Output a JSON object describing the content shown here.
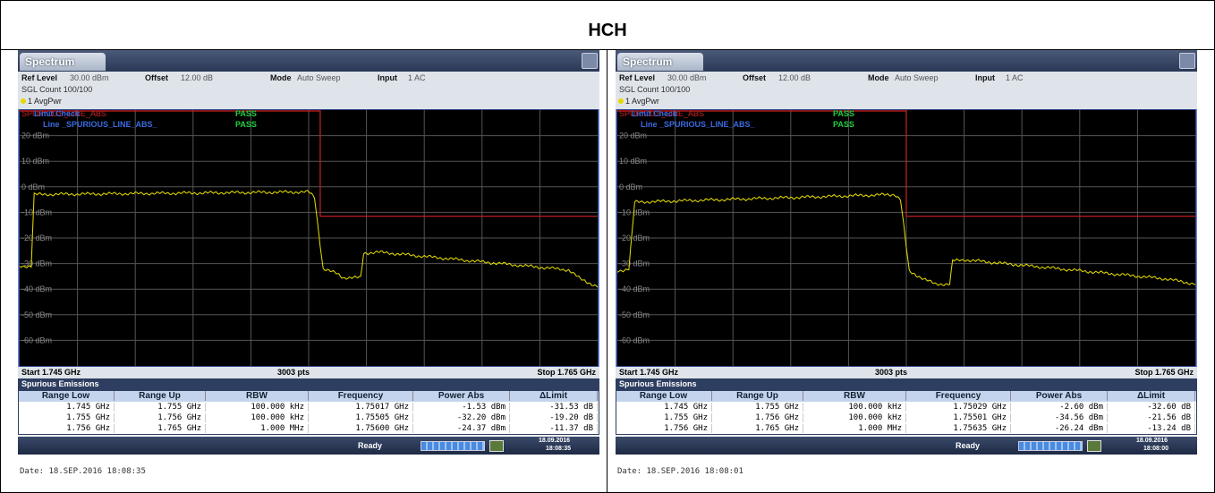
{
  "title": "HCH",
  "panels": [
    {
      "tab": "Spectrum",
      "ref_level_label": "Ref Level",
      "ref_level": "30.00 dBm",
      "offset_label": "Offset",
      "offset": "12.00 dB",
      "mode_label": "Mode",
      "mode": "Auto Sweep",
      "input_label": "Input",
      "input": "1 AC",
      "count": "SGL Count 100/100",
      "trace": "1 AvgPwr",
      "limit_name": "SPURIOUS_LINE_ABS",
      "limit_check": "Limit Check",
      "limit_check_result": "PASS",
      "line_label": "Line _SPURIOUS_LINE_ABS_",
      "line_result": "PASS",
      "y_labels": [
        "20 dBm",
        "10 dBm",
        "0 dBm",
        "-10 dBm",
        "-20 dBm",
        "-30 dBm",
        "-40 dBm",
        "-50 dBm",
        "-60 dBm"
      ],
      "start": "Start 1.745 GHz",
      "points": "3003 pts",
      "stop": "Stop 1.765 GHz",
      "table": {
        "title": "Spurious Emissions",
        "columns": [
          "Range Low",
          "Range Up",
          "RBW",
          "Frequency",
          "Power Abs",
          "ΔLimit"
        ],
        "rows": [
          [
            "1.745 GHz",
            "1.755 GHz",
            "100.000 kHz",
            "1.75017 GHz",
            "-1.53 dBm",
            "-31.53 dB"
          ],
          [
            "1.755 GHz",
            "1.756 GHz",
            "100.000 kHz",
            "1.75505 GHz",
            "-32.20 dBm",
            "-19.20 dB"
          ],
          [
            "1.756 GHz",
            "1.765 GHz",
            "1.000 MHz",
            "1.75600 GHz",
            "-24.37 dBm",
            "-11.37 dB"
          ]
        ]
      },
      "status": "Ready",
      "status_date": "18.09.2016",
      "status_time": "18:08:35",
      "footer": "Date: 18.SEP.2016  18:08:35"
    },
    {
      "tab": "Spectrum",
      "ref_level_label": "Ref Level",
      "ref_level": "30.00 dBm",
      "offset_label": "Offset",
      "offset": "12.00 dB",
      "mode_label": "Mode",
      "mode": "Auto Sweep",
      "input_label": "Input",
      "input": "1 AC",
      "count": "SGL Count 100/100",
      "trace": "1 AvgPwr",
      "limit_name": "SPURIOUS_LINE_ABS",
      "limit_check": "Limit Check",
      "limit_check_result": "PASS",
      "line_label": "Line _SPURIOUS_LINE_ABS_",
      "line_result": "PASS",
      "y_labels": [
        "20 dBm",
        "10 dBm",
        "0 dBm",
        "-10 dBm",
        "-20 dBm",
        "-30 dBm",
        "-40 dBm",
        "-50 dBm",
        "-60 dBm"
      ],
      "start": "Start 1.745 GHz",
      "points": "3003 pts",
      "stop": "Stop 1.765 GHz",
      "table": {
        "title": "Spurious Emissions",
        "columns": [
          "Range Low",
          "Range Up",
          "RBW",
          "Frequency",
          "Power Abs",
          "ΔLimit"
        ],
        "rows": [
          [
            "1.745 GHz",
            "1.755 GHz",
            "100.000 kHz",
            "1.75029 GHz",
            "-2.60 dBm",
            "-32.60 dB"
          ],
          [
            "1.755 GHz",
            "1.756 GHz",
            "100.000 kHz",
            "1.75501 GHz",
            "-34.56 dBm",
            "-21.56 dB"
          ],
          [
            "1.756 GHz",
            "1.765 GHz",
            "1.000 MHz",
            "1.75635 GHz",
            "-26.24 dBm",
            "-13.24 dB"
          ]
        ]
      },
      "status": "Ready",
      "status_date": "18.09.2016",
      "status_time": "18:08:00",
      "footer": "Date: 18.SEP.2016  18:08:01"
    }
  ]
}
